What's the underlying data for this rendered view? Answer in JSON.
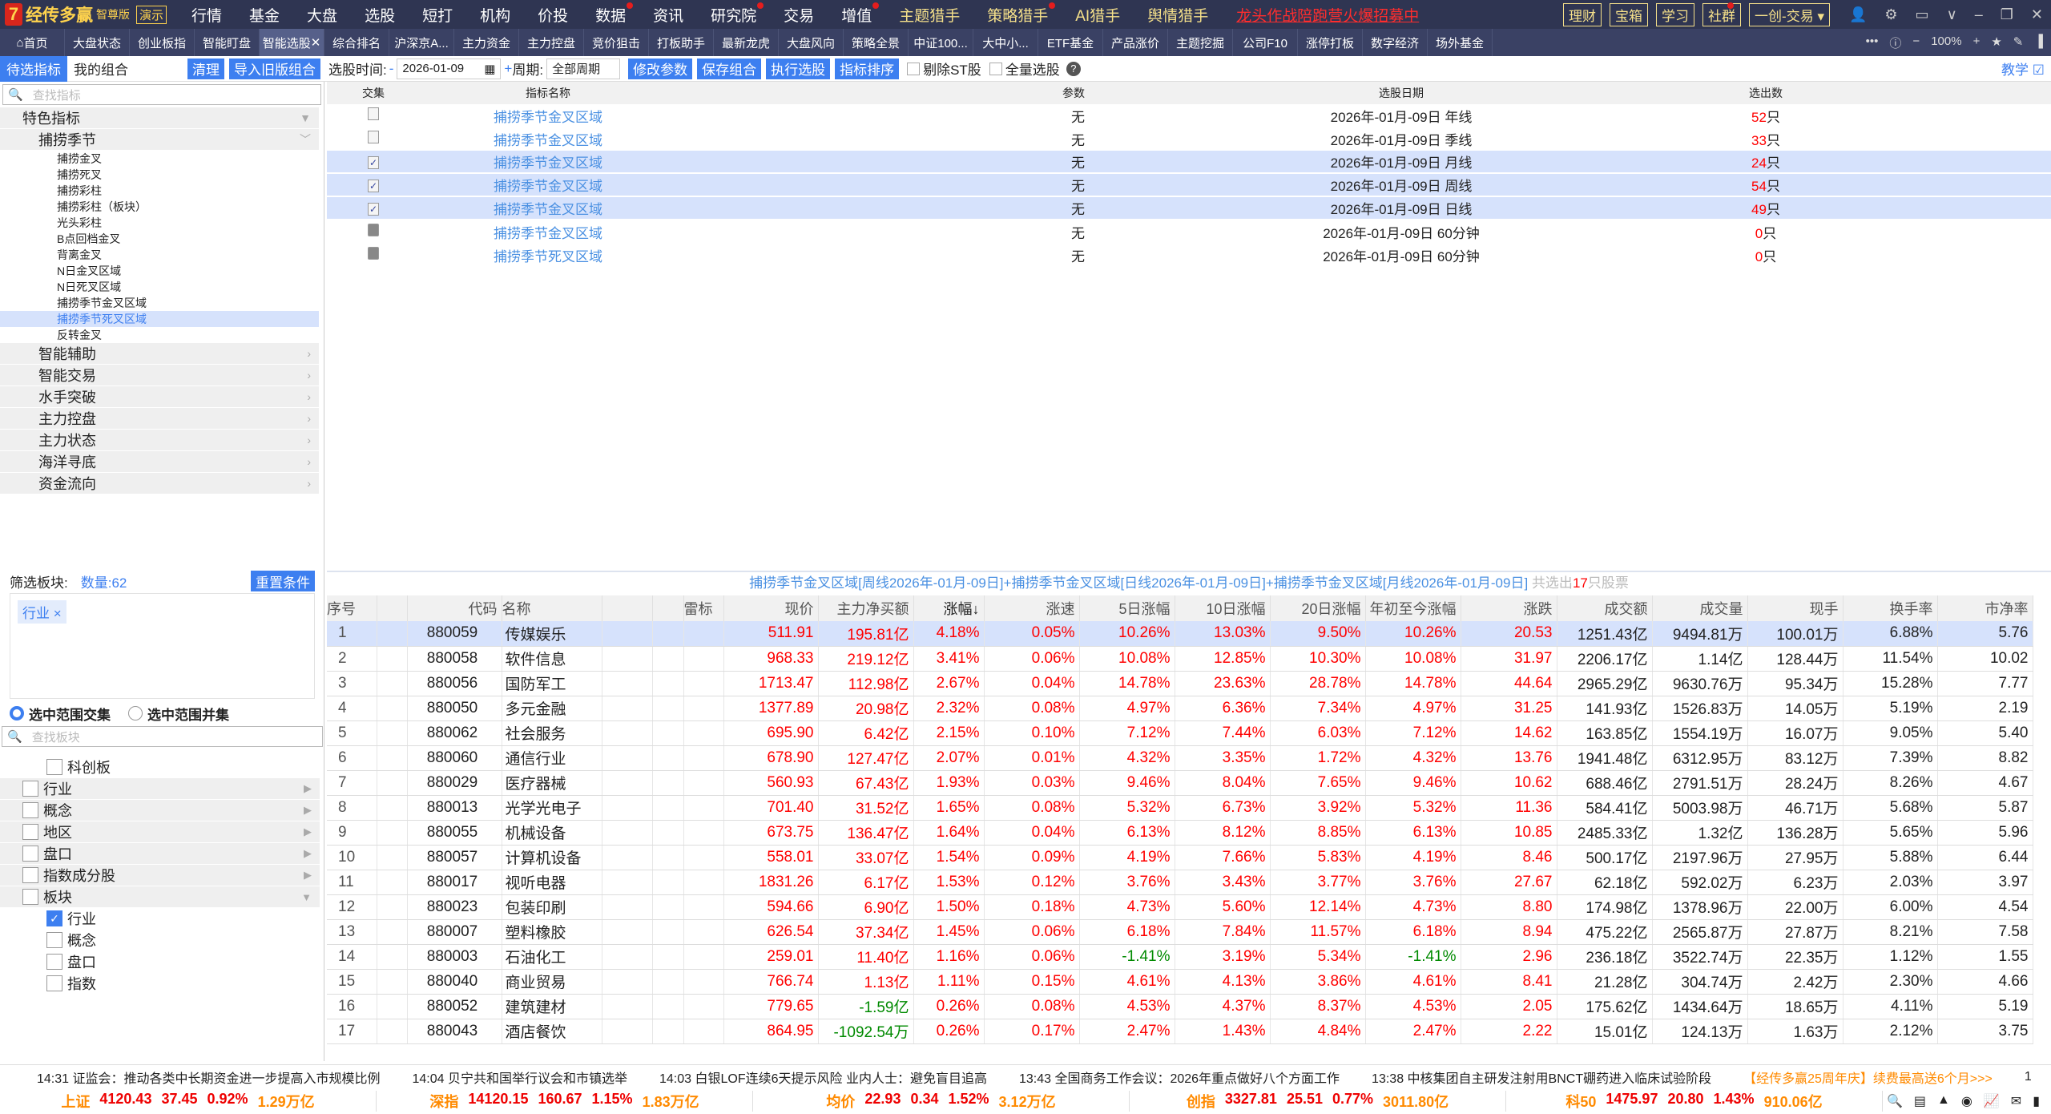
{
  "app": {
    "logo_name": "经传多赢",
    "edition": "智尊版",
    "demo": "演示"
  },
  "menu": [
    {
      "label": "行情"
    },
    {
      "label": "基金"
    },
    {
      "label": "大盘"
    },
    {
      "label": "选股"
    },
    {
      "label": "短打"
    },
    {
      "label": "机构"
    },
    {
      "label": "价投"
    },
    {
      "label": "数据",
      "dot": true
    },
    {
      "label": "资讯"
    },
    {
      "label": "研究院",
      "dot": true
    },
    {
      "label": "交易"
    },
    {
      "label": "增值",
      "dot": true
    },
    {
      "label": "主题猎手",
      "hunter": true
    },
    {
      "label": "策略猎手",
      "hunter": true,
      "dot": true
    },
    {
      "label": "AI猎手",
      "hunter": true
    },
    {
      "label": "舆情猎手",
      "hunter": true
    }
  ],
  "promo": "龙头作战陪跑营火爆招募中",
  "right_boxes": [
    "理财",
    "宝箱",
    "学习",
    "社群"
  ],
  "trade_select": "一创-交易",
  "tabs": [
    "首页",
    "大盘状态",
    "创业板指",
    "智能盯盘",
    "智能选股",
    "综合排名",
    "沪深京A...",
    "主力资金",
    "主力控盘",
    "竞价狙击",
    "打板助手",
    "最新龙虎",
    "大盘风向",
    "策略全景",
    "中证100...",
    "大中小...",
    "ETF基金",
    "产品涨价",
    "主题挖掘",
    "公司F10",
    "涨停打板",
    "数字经济",
    "场外基金"
  ],
  "active_tab": "智能选股",
  "zoom": "100%",
  "toolbar": {
    "tab_pending": "待选指标",
    "tab_mine": "我的组合",
    "clear": "清理",
    "import": "导入旧版组合",
    "date_label": "选股时间:",
    "date_dash": "-",
    "date": "2026-01-09",
    "plus": "+",
    "period_label": "周期:",
    "period": "全部周期",
    "modify": "修改参数",
    "save": "保存组合",
    "run": "执行选股",
    "sort": "指标排序",
    "exclude_st": "剔除ST股",
    "full": "全量选股",
    "teach": "教学"
  },
  "sidebar": {
    "search_placeholder": "查找指标",
    "cat_top": "特色指标",
    "cat_sub": "捕捞季节",
    "items": [
      "捕捞金叉",
      "捕捞死叉",
      "捕捞彩柱",
      "捕捞彩柱（板块）",
      "光头彩柱",
      "B点回档金叉",
      "背离金叉",
      "N日金叉区域",
      "N日死叉区域",
      "捕捞季节金叉区域",
      "捕捞季节死叉区域",
      "反转金叉"
    ],
    "selected_item": "捕捞季节死叉区域",
    "cats": [
      "智能辅助",
      "智能交易",
      "水手突破",
      "主力控盘",
      "主力状态",
      "海洋寻底",
      "资金流向"
    ]
  },
  "filter": {
    "label": "筛选板块:",
    "count": "数量:62",
    "reset": "重置条件",
    "tag": "行业",
    "radio_and": "选中范围交集",
    "radio_or": "选中范围并集",
    "search_placeholder": "查找板块",
    "tree": [
      {
        "label": "科创板",
        "level": 2,
        "checked": false
      },
      {
        "label": "行业",
        "level": 1,
        "arrow": "▶"
      },
      {
        "label": "概念",
        "level": 1,
        "arrow": "▶"
      },
      {
        "label": "地区",
        "level": 1,
        "arrow": "▶"
      },
      {
        "label": "盘口",
        "level": 1,
        "arrow": "▶"
      },
      {
        "label": "指数成分股",
        "level": 1,
        "arrow": "▶"
      },
      {
        "label": "板块",
        "level": 1,
        "arrow": "▼"
      },
      {
        "label": "行业",
        "level": 2,
        "checked": true
      },
      {
        "label": "概念",
        "level": 2,
        "checked": false
      },
      {
        "label": "盘口",
        "level": 2,
        "checked": false
      },
      {
        "label": "指数",
        "level": 2,
        "checked": false
      }
    ]
  },
  "upper": {
    "headers": [
      "交集",
      "指标名称",
      "参数",
      "选股日期",
      "选出数"
    ],
    "rows": [
      {
        "state": "unchecked",
        "name": "捕捞季节金叉区域",
        "param": "无",
        "date": "2026年-01月-09日 年线",
        "count": "52",
        "unit": "只"
      },
      {
        "state": "unchecked",
        "name": "捕捞季节金叉区域",
        "param": "无",
        "date": "2026年-01月-09日 季线",
        "count": "33",
        "unit": "只"
      },
      {
        "state": "checked",
        "name": "捕捞季节金叉区域",
        "param": "无",
        "date": "2026年-01月-09日 月线",
        "count": "24",
        "unit": "只"
      },
      {
        "state": "checked",
        "name": "捕捞季节金叉区域",
        "param": "无",
        "date": "2026年-01月-09日 周线",
        "count": "54",
        "unit": "只"
      },
      {
        "state": "checked",
        "name": "捕捞季节金叉区域",
        "param": "无",
        "date": "2026年-01月-09日 日线",
        "count": "49",
        "unit": "只"
      },
      {
        "state": "disabled",
        "name": "捕捞季节金叉区域",
        "param": "无",
        "date": "2026年-01月-09日 60分钟",
        "count": "0",
        "unit": "只"
      },
      {
        "state": "disabled",
        "name": "捕捞季节死叉区域",
        "param": "无",
        "date": "2026年-01月-09日 60分钟",
        "count": "0",
        "unit": "只"
      }
    ]
  },
  "summary": {
    "text": "捕捞季节金叉区域[周线2026年-01月-09日]+捕捞季节金叉区域[日线2026年-01月-09日]+捕捞季节金叉区域[月线2026年-01月-09日]",
    "pre": "共选出",
    "count": "17",
    "post": "只股票"
  },
  "grid": {
    "headers": [
      "序号",
      "",
      "代码",
      "名称",
      "",
      "",
      "雷标",
      "现价",
      "主力净买额",
      "涨幅↓",
      "涨速",
      "5日涨幅",
      "10日涨幅",
      "20日涨幅",
      "年初至今涨幅",
      "涨跌",
      "成交额",
      "成交量",
      "现手",
      "换手率",
      "市净率"
    ],
    "rows": [
      [
        "1",
        "880059",
        "传媒娱乐",
        "511.91",
        "195.81亿",
        "4.18%",
        "0.05%",
        "10.26%",
        "13.03%",
        "9.50%",
        "10.26%",
        "20.53",
        "1251.43亿",
        "9494.81万",
        "100.01万",
        "6.88%",
        "5.76"
      ],
      [
        "2",
        "880058",
        "软件信息",
        "968.33",
        "219.12亿",
        "3.41%",
        "0.06%",
        "10.08%",
        "12.85%",
        "10.30%",
        "10.08%",
        "31.97",
        "2206.17亿",
        "1.14亿",
        "128.44万",
        "11.54%",
        "10.02"
      ],
      [
        "3",
        "880056",
        "国防军工",
        "1713.47",
        "112.98亿",
        "2.67%",
        "0.04%",
        "14.78%",
        "23.63%",
        "28.78%",
        "14.78%",
        "44.64",
        "2965.29亿",
        "9630.76万",
        "95.34万",
        "15.28%",
        "7.77"
      ],
      [
        "4",
        "880050",
        "多元金融",
        "1377.89",
        "20.98亿",
        "2.32%",
        "0.08%",
        "4.97%",
        "6.36%",
        "7.34%",
        "4.97%",
        "31.25",
        "141.93亿",
        "1526.83万",
        "14.05万",
        "5.19%",
        "2.19"
      ],
      [
        "5",
        "880062",
        "社会服务",
        "695.90",
        "6.42亿",
        "2.15%",
        "0.10%",
        "7.12%",
        "7.44%",
        "6.03%",
        "7.12%",
        "14.62",
        "163.85亿",
        "1554.19万",
        "16.07万",
        "9.05%",
        "5.40"
      ],
      [
        "6",
        "880060",
        "通信行业",
        "678.90",
        "127.47亿",
        "2.07%",
        "0.01%",
        "4.32%",
        "3.35%",
        "1.72%",
        "4.32%",
        "13.76",
        "1941.48亿",
        "6312.95万",
        "83.12万",
        "7.39%",
        "8.82"
      ],
      [
        "7",
        "880029",
        "医疗器械",
        "560.93",
        "67.43亿",
        "1.93%",
        "0.03%",
        "9.46%",
        "8.04%",
        "7.65%",
        "9.46%",
        "10.62",
        "688.46亿",
        "2791.51万",
        "28.24万",
        "8.26%",
        "4.67"
      ],
      [
        "8",
        "880013",
        "光学光电子",
        "701.40",
        "31.52亿",
        "1.65%",
        "0.08%",
        "5.32%",
        "6.73%",
        "3.92%",
        "5.32%",
        "11.36",
        "584.41亿",
        "5003.98万",
        "46.71万",
        "5.68%",
        "5.87"
      ],
      [
        "9",
        "880055",
        "机械设备",
        "673.75",
        "136.47亿",
        "1.64%",
        "0.04%",
        "6.13%",
        "8.12%",
        "8.85%",
        "6.13%",
        "10.85",
        "2485.33亿",
        "1.32亿",
        "136.28万",
        "5.65%",
        "5.96"
      ],
      [
        "10",
        "880057",
        "计算机设备",
        "558.01",
        "33.07亿",
        "1.54%",
        "0.09%",
        "4.19%",
        "7.66%",
        "5.83%",
        "4.19%",
        "8.46",
        "500.17亿",
        "2197.96万",
        "27.95万",
        "5.88%",
        "6.44"
      ],
      [
        "11",
        "880017",
        "视听电器",
        "1831.26",
        "6.17亿",
        "1.53%",
        "0.12%",
        "3.76%",
        "3.43%",
        "3.77%",
        "3.76%",
        "27.67",
        "62.18亿",
        "592.02万",
        "6.23万",
        "2.03%",
        "3.97"
      ],
      [
        "12",
        "880023",
        "包装印刷",
        "594.66",
        "6.90亿",
        "1.50%",
        "0.18%",
        "4.73%",
        "5.60%",
        "12.14%",
        "4.73%",
        "8.80",
        "174.98亿",
        "1378.96万",
        "22.00万",
        "6.00%",
        "4.54"
      ],
      [
        "13",
        "880007",
        "塑料橡胶",
        "626.54",
        "37.34亿",
        "1.45%",
        "0.06%",
        "6.18%",
        "7.84%",
        "11.57%",
        "6.18%",
        "8.94",
        "475.22亿",
        "2565.87万",
        "27.87万",
        "8.21%",
        "7.58"
      ],
      [
        "14",
        "880003",
        "石油化工",
        "259.01",
        "11.40亿",
        "1.16%",
        "0.06%",
        "-1.41%",
        "3.19%",
        "5.34%",
        "-1.41%",
        "2.96",
        "236.18亿",
        "3522.74万",
        "22.35万",
        "1.12%",
        "1.55"
      ],
      [
        "15",
        "880040",
        "商业贸易",
        "766.74",
        "1.13亿",
        "1.11%",
        "0.15%",
        "4.61%",
        "4.13%",
        "3.86%",
        "4.61%",
        "8.41",
        "21.28亿",
        "304.74万",
        "2.42万",
        "2.30%",
        "4.66"
      ],
      [
        "16",
        "880052",
        "建筑建材",
        "779.65",
        "-1.59亿",
        "0.26%",
        "0.08%",
        "4.53%",
        "4.37%",
        "8.37%",
        "4.53%",
        "2.05",
        "175.62亿",
        "1434.64万",
        "18.65万",
        "4.11%",
        "5.19"
      ],
      [
        "17",
        "880043",
        "酒店餐饮",
        "864.95",
        "-1092.54万",
        "0.26%",
        "0.17%",
        "2.47%",
        "1.43%",
        "4.84%",
        "2.47%",
        "2.22",
        "15.01亿",
        "124.13万",
        "1.63万",
        "2.12%",
        "3.75"
      ]
    ]
  },
  "news": [
    "14:31 证监会：推动各类中长期资金进一步提高入市规模比例",
    "14:04 贝宁共和国举行议会和市镇选举",
    "14:03 白银LOF连续6天提示风险 业内人士：避免盲目追高",
    "13:43 全国商务工作会议：2026年重点做好八个方面工作",
    "13:38 中核集团自主研发注射用BNCT硼药进入临床试验阶段"
  ],
  "news_ad": "【经传多赢25周年庆】续费最高送6个月>>>",
  "news_page": "1",
  "indices": [
    {
      "name": "上证",
      "price": "4120.43",
      "chg": "37.45",
      "pct": "0.92%",
      "amt": "1.29万亿"
    },
    {
      "name": "深指",
      "price": "14120.15",
      "chg": "160.67",
      "pct": "1.15%",
      "amt": "1.83万亿"
    },
    {
      "name": "均价",
      "price": "22.93",
      "chg": "0.34",
      "pct": "1.52%",
      "amt": "3.12万亿"
    },
    {
      "name": "创指",
      "price": "3327.81",
      "chg": "25.51",
      "pct": "0.77%",
      "amt": "3011.80亿"
    },
    {
      "name": "科50",
      "price": "1475.97",
      "chg": "20.80",
      "pct": "1.43%",
      "amt": "910.06亿"
    }
  ],
  "colors": {
    "up": "#ff0000",
    "down": "#008a00",
    "accent": "#3d7ff0",
    "selected_row": "#d6e2fc",
    "topbar": "#2f3552"
  }
}
